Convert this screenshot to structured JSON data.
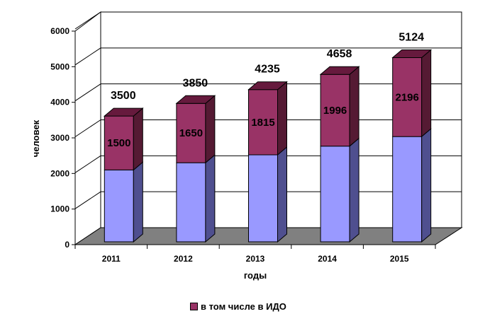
{
  "chart_data": {
    "type": "bar",
    "stacked": true,
    "three_d": true,
    "categories": [
      "2011",
      "2012",
      "2013",
      "2014",
      "2015"
    ],
    "totals": [
      3500,
      3850,
      4235,
      4658,
      5124
    ],
    "series": [
      {
        "name": "",
        "values": [
          2000,
          2200,
          2420,
          2662,
          2928
        ],
        "color": "#9999ff"
      },
      {
        "name": "в том числе  в ИДО",
        "values": [
          1500,
          1650,
          1815,
          1996,
          2196
        ],
        "color": "#993366"
      }
    ],
    "xlabel": "годы",
    "ylabel": "человек",
    "ylim": [
      0,
      6000
    ],
    "yticks": [
      "0",
      "1000",
      "2000",
      "3000",
      "4000",
      "5000",
      "6000"
    ],
    "grid": true,
    "legend_position": "bottom",
    "colors": {
      "lower_face": "#9999ff",
      "lower_side": "#4f4f8f",
      "upper_face": "#993366",
      "upper_top": "#661a3d",
      "upper_side": "#551a33",
      "floor": "#808080"
    }
  }
}
